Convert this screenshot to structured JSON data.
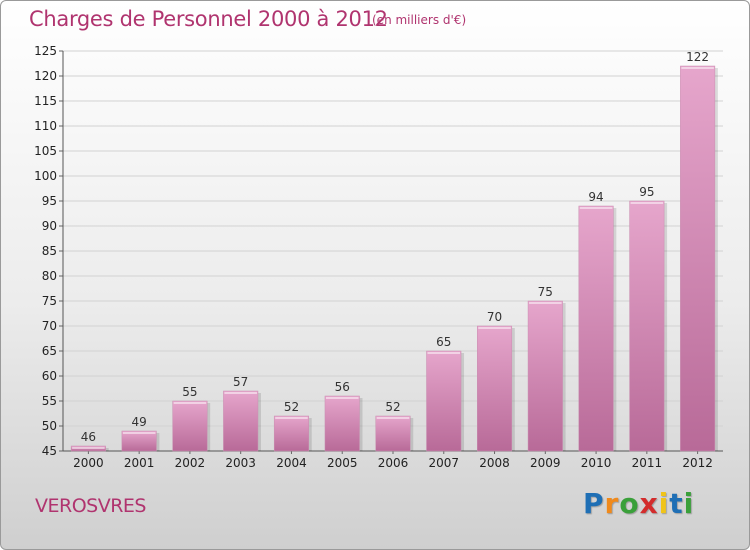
{
  "header": {
    "title": "Charges de Personnel 2000 à 2012",
    "subtitle": "(en milliers d'€)"
  },
  "footer": {
    "commune": "VEROSVRES",
    "logo_letters": [
      "P",
      "r",
      "o",
      "x",
      "i",
      "t",
      "i"
    ]
  },
  "colors": {
    "title": "#b0346f",
    "bar_light": "#e6a6cc",
    "bar_dark": "#b86a98",
    "logo": [
      "#1f6fb5",
      "#f08a1c",
      "#3aa03a",
      "#d32c2c",
      "#f0c419",
      "#1f6fb5",
      "#3aa03a"
    ]
  },
  "chart_data": {
    "type": "bar",
    "categories": [
      "2000",
      "2001",
      "2002",
      "2003",
      "2004",
      "2005",
      "2006",
      "2007",
      "2008",
      "2009",
      "2010",
      "2011",
      "2012"
    ],
    "values": [
      46,
      49,
      55,
      57,
      52,
      56,
      52,
      65,
      70,
      75,
      94,
      95,
      122
    ],
    "ylim": [
      45,
      125
    ],
    "yticks": [
      45,
      50,
      55,
      60,
      65,
      70,
      75,
      80,
      85,
      90,
      95,
      100,
      105,
      110,
      115,
      120,
      125
    ],
    "grid": true
  }
}
